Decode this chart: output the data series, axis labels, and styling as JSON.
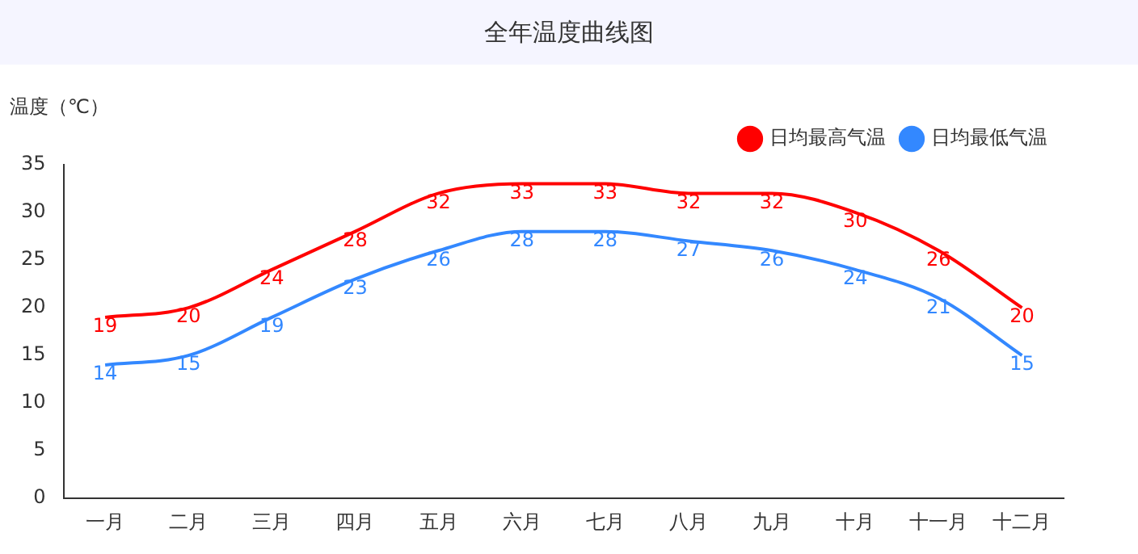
{
  "chart_data": {
    "type": "line",
    "title": "全年温度曲线图",
    "ylabel": "温度（℃）",
    "categories": [
      "一月",
      "二月",
      "三月",
      "四月",
      "五月",
      "六月",
      "七月",
      "八月",
      "九月",
      "十月",
      "十一月",
      "十二月"
    ],
    "series": [
      {
        "name": "日均最高气温",
        "color": "#ff0000",
        "values": [
          19,
          20,
          24,
          28,
          32,
          33,
          33,
          32,
          32,
          30,
          26,
          20
        ]
      },
      {
        "name": "日均最低气温",
        "color": "#3388ff",
        "values": [
          14,
          15,
          19,
          23,
          26,
          28,
          28,
          27,
          26,
          24,
          21,
          15
        ]
      }
    ],
    "ylim": [
      0,
      35
    ],
    "yticks": [
      0,
      5,
      10,
      15,
      20,
      25,
      30,
      35
    ],
    "grid": false,
    "legend": "top right",
    "marker": "none",
    "line_style": "solid",
    "data_labels": true
  }
}
